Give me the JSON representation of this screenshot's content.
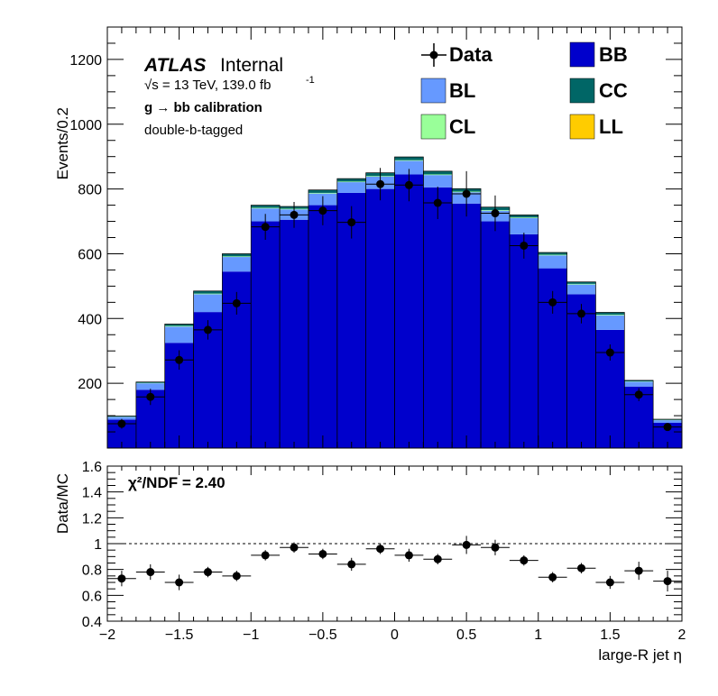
{
  "colors": {
    "BB": "#0000cc",
    "BL": "#6699ff",
    "CC": "#006666",
    "CL": "#99ff99",
    "LL": "#ffcc00",
    "data": "#000000"
  },
  "annotations": {
    "atlas": "ATLAS",
    "internal": "Internal",
    "sqrt_s": "√s = 13 TeV, 139.0 fb",
    "lumi_exp": "-1",
    "process": "g  → bb calibration",
    "selection": "double-b-tagged",
    "chi2": "χ²/NDF = 2.40"
  },
  "legend": {
    "data": "Data",
    "BB": "BB",
    "BL": "BL",
    "CC": "CC",
    "CL": "CL",
    "LL": "LL"
  },
  "chart_data": [
    {
      "type": "area",
      "subtype": "stacked-histogram",
      "ylabel": "Events/0.2",
      "xlim": [
        -2,
        2
      ],
      "ylim": [
        0,
        1300
      ],
      "ytick_labels": [
        "200",
        "400",
        "600",
        "800",
        "1000",
        "1200"
      ],
      "bin_edges": [
        -2.0,
        -1.8,
        -1.6,
        -1.4,
        -1.2,
        -1.0,
        -0.8,
        -0.6,
        -0.4,
        -0.2,
        0.0,
        0.2,
        0.4,
        0.6,
        0.8,
        1.0,
        1.2,
        1.4,
        1.6,
        1.8,
        2.0
      ],
      "series": [
        {
          "name": "BB",
          "values": [
            88,
            180,
            325,
            420,
            545,
            700,
            705,
            750,
            788,
            800,
            845,
            805,
            755,
            700,
            660,
            555,
            475,
            365,
            190,
            78
          ]
        },
        {
          "name": "BL",
          "values": [
            8,
            20,
            50,
            55,
            45,
            40,
            32,
            36,
            33,
            38,
            42,
            38,
            35,
            33,
            50,
            40,
            30,
            45,
            15,
            8
          ]
        },
        {
          "name": "CL",
          "values": [
            1,
            1,
            2,
            2,
            2,
            2,
            2,
            2,
            2,
            2,
            2,
            2,
            2,
            2,
            2,
            2,
            2,
            2,
            1,
            1
          ]
        },
        {
          "name": "CC",
          "values": [
            2,
            3,
            6,
            8,
            8,
            8,
            7,
            9,
            9,
            10,
            10,
            10,
            9,
            9,
            8,
            7,
            6,
            7,
            3,
            2
          ]
        },
        {
          "name": "LL",
          "values": [
            0,
            0,
            0,
            0,
            0,
            0,
            0,
            0,
            0,
            0,
            0,
            0,
            0,
            0,
            0,
            0,
            0,
            0,
            0,
            0
          ]
        }
      ],
      "data": {
        "name": "Data",
        "x": [
          -1.9,
          -1.7,
          -1.5,
          -1.3,
          -1.1,
          -0.9,
          -0.7,
          -0.5,
          -0.3,
          -0.1,
          0.1,
          0.3,
          0.5,
          0.7,
          0.9,
          1.1,
          1.3,
          1.5,
          1.7,
          1.9
        ],
        "y": [
          75,
          158,
          272,
          365,
          447,
          683,
          720,
          733,
          697,
          815,
          812,
          757,
          785,
          725,
          625,
          450,
          415,
          295,
          165,
          65
        ],
        "yerr": [
          15,
          25,
          30,
          30,
          35,
          40,
          40,
          45,
          50,
          50,
          50,
          50,
          70,
          55,
          40,
          35,
          30,
          25,
          20,
          12
        ]
      }
    },
    {
      "type": "scatter",
      "subtype": "ratio",
      "xlabel": "large-R jet η",
      "ylabel": "Data/MC",
      "xlim": [
        -2,
        2
      ],
      "ylim": [
        0.4,
        1.6
      ],
      "xtick_labels": [
        "−2",
        "−1.5",
        "−1",
        "−0.5",
        "0",
        "0.5",
        "1",
        "1.5",
        "2"
      ],
      "ytick_labels": [
        "0.4",
        "0.6",
        "0.8",
        "1",
        "1.2",
        "1.4",
        "1.6"
      ],
      "reference_line": 1.0,
      "x": [
        -1.9,
        -1.7,
        -1.5,
        -1.3,
        -1.1,
        -0.9,
        -0.7,
        -0.5,
        -0.3,
        -0.1,
        0.1,
        0.3,
        0.5,
        0.7,
        0.9,
        1.1,
        1.3,
        1.5,
        1.7,
        1.9
      ],
      "y": [
        0.73,
        0.78,
        0.7,
        0.78,
        0.75,
        0.91,
        0.97,
        0.92,
        0.84,
        0.96,
        0.91,
        0.88,
        0.99,
        0.97,
        0.87,
        0.74,
        0.81,
        0.7,
        0.79,
        0.71
      ],
      "yerr": [
        0.06,
        0.06,
        0.06,
        0.04,
        0.04,
        0.04,
        0.04,
        0.04,
        0.05,
        0.04,
        0.05,
        0.04,
        0.07,
        0.06,
        0.04,
        0.04,
        0.04,
        0.05,
        0.07,
        0.08
      ]
    }
  ]
}
